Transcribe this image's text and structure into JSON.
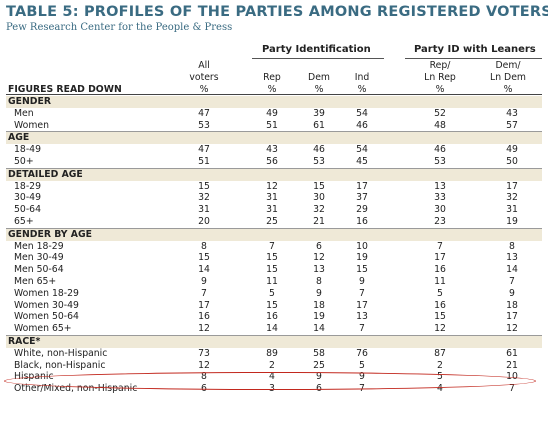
{
  "title": "TABLE 5: PROFILES OF THE PARTIES AMONG REGISTERED VOTERS",
  "subtitle": "Pew Research Center for the People & Press",
  "groups": {
    "party_id": "Party Identification",
    "party_id_leaners": "Party ID with Leaners"
  },
  "columns": {
    "all": {
      "l1": "All",
      "l2": "voters",
      "l3": "%"
    },
    "rep": {
      "l2": "Rep",
      "l3": "%"
    },
    "dem": {
      "l2": "Dem",
      "l3": "%"
    },
    "ind": {
      "l2": "Ind",
      "l3": "%"
    },
    "rep_ln": {
      "l1": "Rep/",
      "l2": "Ln Rep",
      "l3": "%"
    },
    "dem_ln": {
      "l1": "Dem/",
      "l2": "Ln Dem",
      "l3": "%"
    }
  },
  "figures_label": "FIGURES READ DOWN",
  "sections": {
    "gender": {
      "title": "GENDER",
      "rows": [
        {
          "label": "Men",
          "v": [
            "47",
            "49",
            "39",
            "54",
            "52",
            "43"
          ]
        },
        {
          "label": "Women",
          "v": [
            "53",
            "51",
            "61",
            "46",
            "48",
            "57"
          ]
        }
      ]
    },
    "age": {
      "title": "AGE",
      "rows": [
        {
          "label": "18-49",
          "v": [
            "47",
            "43",
            "46",
            "54",
            "46",
            "49"
          ]
        },
        {
          "label": "50+",
          "v": [
            "51",
            "56",
            "53",
            "45",
            "53",
            "50"
          ]
        }
      ]
    },
    "detailed_age": {
      "title": "DETAILED AGE",
      "rows": [
        {
          "label": "18-29",
          "v": [
            "15",
            "12",
            "15",
            "17",
            "13",
            "17"
          ]
        },
        {
          "label": "30-49",
          "v": [
            "32",
            "31",
            "30",
            "37",
            "33",
            "32"
          ]
        },
        {
          "label": "50-64",
          "v": [
            "31",
            "31",
            "32",
            "29",
            "30",
            "31"
          ]
        },
        {
          "label": "65+",
          "v": [
            "20",
            "25",
            "21",
            "16",
            "23",
            "19"
          ]
        }
      ]
    },
    "gender_by_age": {
      "title": "GENDER BY AGE",
      "rows": [
        {
          "label": "Men 18-29",
          "v": [
            "8",
            "7",
            "6",
            "10",
            "7",
            "8"
          ]
        },
        {
          "label": "Men 30-49",
          "v": [
            "15",
            "15",
            "12",
            "19",
            "17",
            "13"
          ]
        },
        {
          "label": "Men 50-64",
          "v": [
            "14",
            "15",
            "13",
            "15",
            "16",
            "14"
          ]
        },
        {
          "label": "Men 65+",
          "v": [
            "9",
            "11",
            "8",
            "9",
            "11",
            "7"
          ]
        },
        {
          "label": "Women 18-29",
          "v": [
            "7",
            "5",
            "9",
            "7",
            "5",
            "9"
          ]
        },
        {
          "label": "Women 30-49",
          "v": [
            "17",
            "15",
            "18",
            "17",
            "16",
            "18"
          ]
        },
        {
          "label": "Women 50-64",
          "v": [
            "16",
            "16",
            "19",
            "13",
            "15",
            "17"
          ]
        },
        {
          "label": "Women 65+",
          "v": [
            "12",
            "14",
            "14",
            "7",
            "12",
            "12"
          ]
        }
      ]
    },
    "race": {
      "title": "RACE*",
      "rows": [
        {
          "label": "White, non-Hispanic",
          "v": [
            "73",
            "89",
            "58",
            "76",
            "87",
            "61"
          ]
        },
        {
          "label": "Black, non-Hispanic",
          "v": [
            "12",
            "2",
            "25",
            "5",
            "2",
            "21"
          ]
        },
        {
          "label": "Hispanic",
          "v": [
            "8",
            "4",
            "9",
            "9",
            "5",
            "10"
          ]
        },
        {
          "label": "Other/Mixed, non-Hispanic",
          "v": [
            "6",
            "3",
            "6",
            "7",
            "4",
            "7"
          ]
        }
      ]
    }
  },
  "colors": {
    "title": "#3a6b82",
    "section_band": "#efe9d7",
    "highlight_ellipse": "#c2281e"
  }
}
